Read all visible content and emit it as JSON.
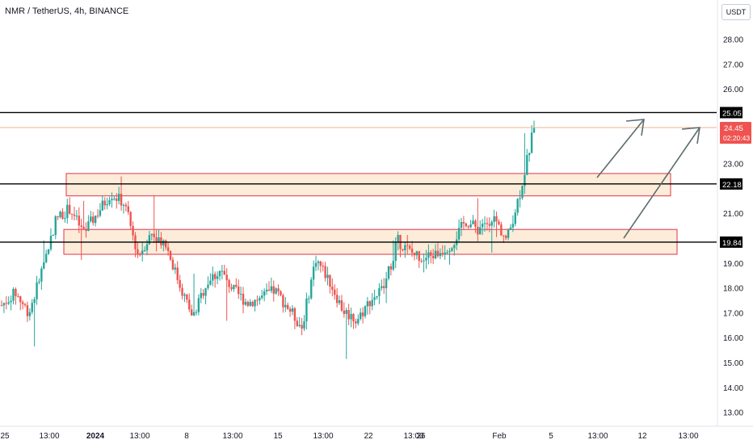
{
  "chart_title": "NMR / TetherUS, 4h, BINANCE",
  "unit_label": "USDT",
  "colors": {
    "up": "#26a69a",
    "down": "#ef5350",
    "zone_fill": "#fbe9d2",
    "zone_stroke": "#e0344a",
    "level_line": "#000000",
    "current_line": "#f4b28f",
    "arrow": "#5d6d6e",
    "axis_text": "#131722"
  },
  "chart_data": {
    "type": "candlestick",
    "title": "NMR / TetherUS, 4h, BINANCE",
    "y_axis_unit": "USDT",
    "ylim": [
      12.5,
      29
    ],
    "y_ticks": [
      "28.00",
      "27.00",
      "26.00",
      "23.00",
      "21.00",
      "19.00",
      "18.00",
      "17.00",
      "16.00",
      "15.00",
      "14.00",
      "13.00"
    ],
    "x_tick_labels": [
      "25",
      "13:00",
      "2024",
      "13:00",
      "8",
      "13:00",
      "15",
      "13:00",
      "22",
      "13:00",
      "26",
      "Feb",
      "5",
      "13:00",
      "12",
      "13:00"
    ],
    "grid": false,
    "horizontal_levels": [
      {
        "label": "25.05",
        "value": 25.05
      },
      {
        "label": "22.18",
        "value": 22.18
      },
      {
        "label": "19.84",
        "value": 19.84
      }
    ],
    "current_price": {
      "label": "24.45",
      "value": 24.45,
      "countdown": "02:20:43"
    },
    "zones": [
      {
        "low": 21.7,
        "high": 22.6
      },
      {
        "low": 19.35,
        "high": 20.35
      }
    ],
    "path_points": [
      [
        "Dec 25",
        17.3
      ],
      [
        "Dec 27",
        17.8
      ],
      [
        "Dec 28",
        17.0
      ],
      [
        "Dec 30",
        18.8
      ],
      [
        "Dec 31",
        20.8
      ],
      [
        "Jan 1",
        21.2
      ],
      [
        "Jan 2",
        20.2
      ],
      [
        "Jan 3",
        21.0
      ],
      [
        "Jan 4",
        21.8
      ],
      [
        "Jan 5",
        21.4
      ],
      [
        "Jan 6",
        19.3
      ],
      [
        "Jan 7",
        20.2
      ],
      [
        "Jan 8",
        19.8
      ],
      [
        "Jan 9",
        18.2
      ],
      [
        "Jan 10",
        16.8
      ],
      [
        "Jan 11",
        18.2
      ],
      [
        "Jan 12",
        18.7
      ],
      [
        "Jan 13",
        17.9
      ],
      [
        "Jan 14",
        17.4
      ],
      [
        "Jan 15",
        17.6
      ],
      [
        "Jan 16",
        17.9
      ],
      [
        "Jan 17",
        17.2
      ],
      [
        "Jan 18",
        16.4
      ],
      [
        "Jan 19",
        19.2
      ],
      [
        "Jan 20",
        18.3
      ],
      [
        "Jan 21",
        17.1
      ],
      [
        "Jan 22",
        16.7
      ],
      [
        "Jan 23",
        17.5
      ],
      [
        "Jan 24",
        18.0
      ],
      [
        "Jan 25",
        19.9
      ],
      [
        "Jan 26",
        19.4
      ],
      [
        "Jan 27",
        19.2
      ],
      [
        "Jan 28",
        19.4
      ],
      [
        "Jan 29",
        19.8
      ],
      [
        "Jan 30",
        20.7
      ],
      [
        "Jan 31",
        20.3
      ],
      [
        "Feb 1",
        20.9
      ],
      [
        "Feb 2",
        19.9
      ],
      [
        "Feb 3",
        21.9
      ],
      [
        "Feb 4",
        24.45
      ]
    ]
  }
}
